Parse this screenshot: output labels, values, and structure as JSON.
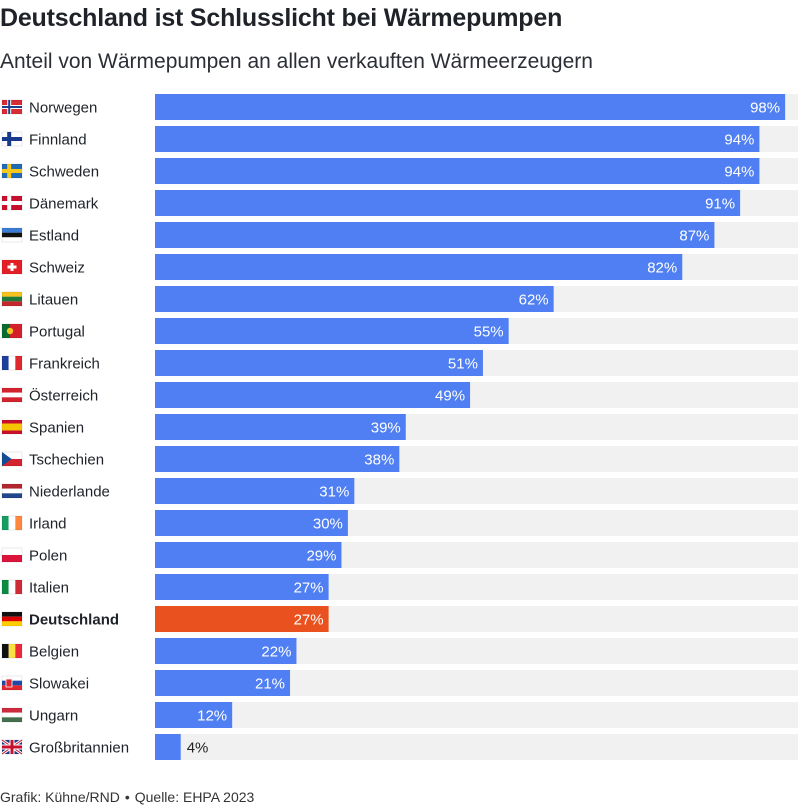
{
  "header": {
    "title": "Deutschland ist Schlusslicht bei Wärmepumpen",
    "subtitle": "Anteil von Wärmepumpen an allen verkauften Wärmeerzeugern"
  },
  "footer": {
    "credit": "Grafik: Kühne/RND",
    "separator": "•",
    "source": "Quelle: EHPA 2023"
  },
  "colors": {
    "bar": "#4f7ff2",
    "highlight": "#e9521e",
    "track": "#f1f1f1",
    "label_inside": "#ffffff",
    "label_outside": "#222222"
  },
  "chart_data": {
    "type": "bar",
    "orientation": "horizontal",
    "unit": "%",
    "xlim": [
      0,
      100
    ],
    "grid": false,
    "legend": "none",
    "highlight": "Deutschland",
    "categories": [
      "Norwegen",
      "Finnland",
      "Schweden",
      "Dänemark",
      "Estland",
      "Schweiz",
      "Litauen",
      "Portugal",
      "Frankreich",
      "Österreich",
      "Spanien",
      "Tschechien",
      "Niederlande",
      "Irland",
      "Polen",
      "Italien",
      "Deutschland",
      "Belgien",
      "Slowakei",
      "Ungarn",
      "Großbritannien"
    ],
    "values": [
      98,
      94,
      94,
      91,
      87,
      82,
      62,
      55,
      51,
      49,
      39,
      38,
      31,
      30,
      29,
      27,
      27,
      22,
      21,
      12,
      4
    ],
    "value_labels": [
      "98%",
      "94%",
      "94%",
      "91%",
      "87%",
      "82%",
      "62%",
      "55%",
      "51%",
      "49%",
      "39%",
      "38%",
      "31%",
      "30%",
      "29%",
      "27%",
      "27%",
      "22%",
      "21%",
      "12%",
      "4%"
    ],
    "flags": [
      "flag-norway-icon",
      "flag-finland-icon",
      "flag-sweden-icon",
      "flag-denmark-icon",
      "flag-estonia-icon",
      "flag-switzerland-icon",
      "flag-lithuania-icon",
      "flag-portugal-icon",
      "flag-france-icon",
      "flag-austria-icon",
      "flag-spain-icon",
      "flag-czechia-icon",
      "flag-netherlands-icon",
      "flag-ireland-icon",
      "flag-poland-icon",
      "flag-italy-icon",
      "flag-germany-icon",
      "flag-belgium-icon",
      "flag-slovakia-icon",
      "flag-hungary-icon",
      "flag-uk-icon"
    ]
  }
}
